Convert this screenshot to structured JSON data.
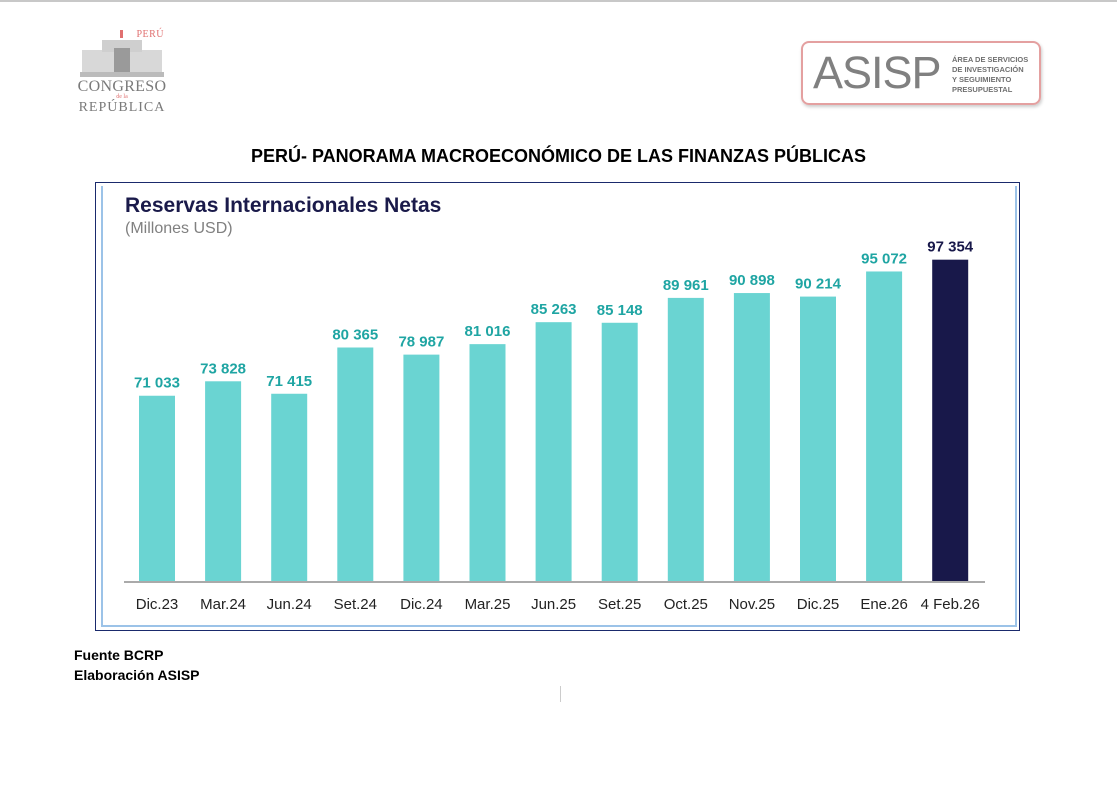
{
  "header": {
    "congreso_logo": {
      "country": "PERÚ",
      "line1": "CONGRESO",
      "line2": "de la",
      "line3": "REPÚBLICA"
    },
    "asisp_logo": {
      "acronym": "ASISP",
      "description": [
        "ÁREA DE SERVICIOS",
        "DE INVESTIGACIÓN",
        "Y SEGUIMIENTO",
        "PRESUPUESTAL"
      ]
    }
  },
  "document_title": "PERÚ- PANORAMA MACROECONÓMICO DE LAS FINANZAS PÚBLICAS",
  "chart_data": {
    "type": "bar",
    "title": "Reservas Internacionales Netas",
    "subtitle": "(Millones USD)",
    "xlabel": "",
    "ylabel": "",
    "categories": [
      "Dic.23",
      "Mar.24",
      "Jun.24",
      "Set.24",
      "Dic.24",
      "Mar.25",
      "Jun.25",
      "Set.25",
      "Oct.25",
      "Nov.25",
      "Dic.25",
      "Ene.26",
      "4 Feb.26"
    ],
    "values": [
      71033,
      73828,
      71415,
      80365,
      78987,
      81016,
      85263,
      85148,
      89961,
      90898,
      90214,
      95072,
      97354
    ],
    "value_labels": [
      "71 033",
      "73 828",
      "71 415",
      "80 365",
      "78 987",
      "81 016",
      "85 263",
      "85 148",
      "89 961",
      "90 898",
      "90 214",
      "95 072",
      "97 354"
    ],
    "ylim": [
      35000,
      100000
    ],
    "grid": false,
    "colors": {
      "default": "#6ad4d2",
      "highlight": "#18184a",
      "label_default": "#1fa5a3",
      "label_highlight": "#18184a"
    },
    "highlight_index": 12
  },
  "footer": {
    "source": "Fuente BCRP",
    "elaboration": "Elaboración ASISP"
  }
}
